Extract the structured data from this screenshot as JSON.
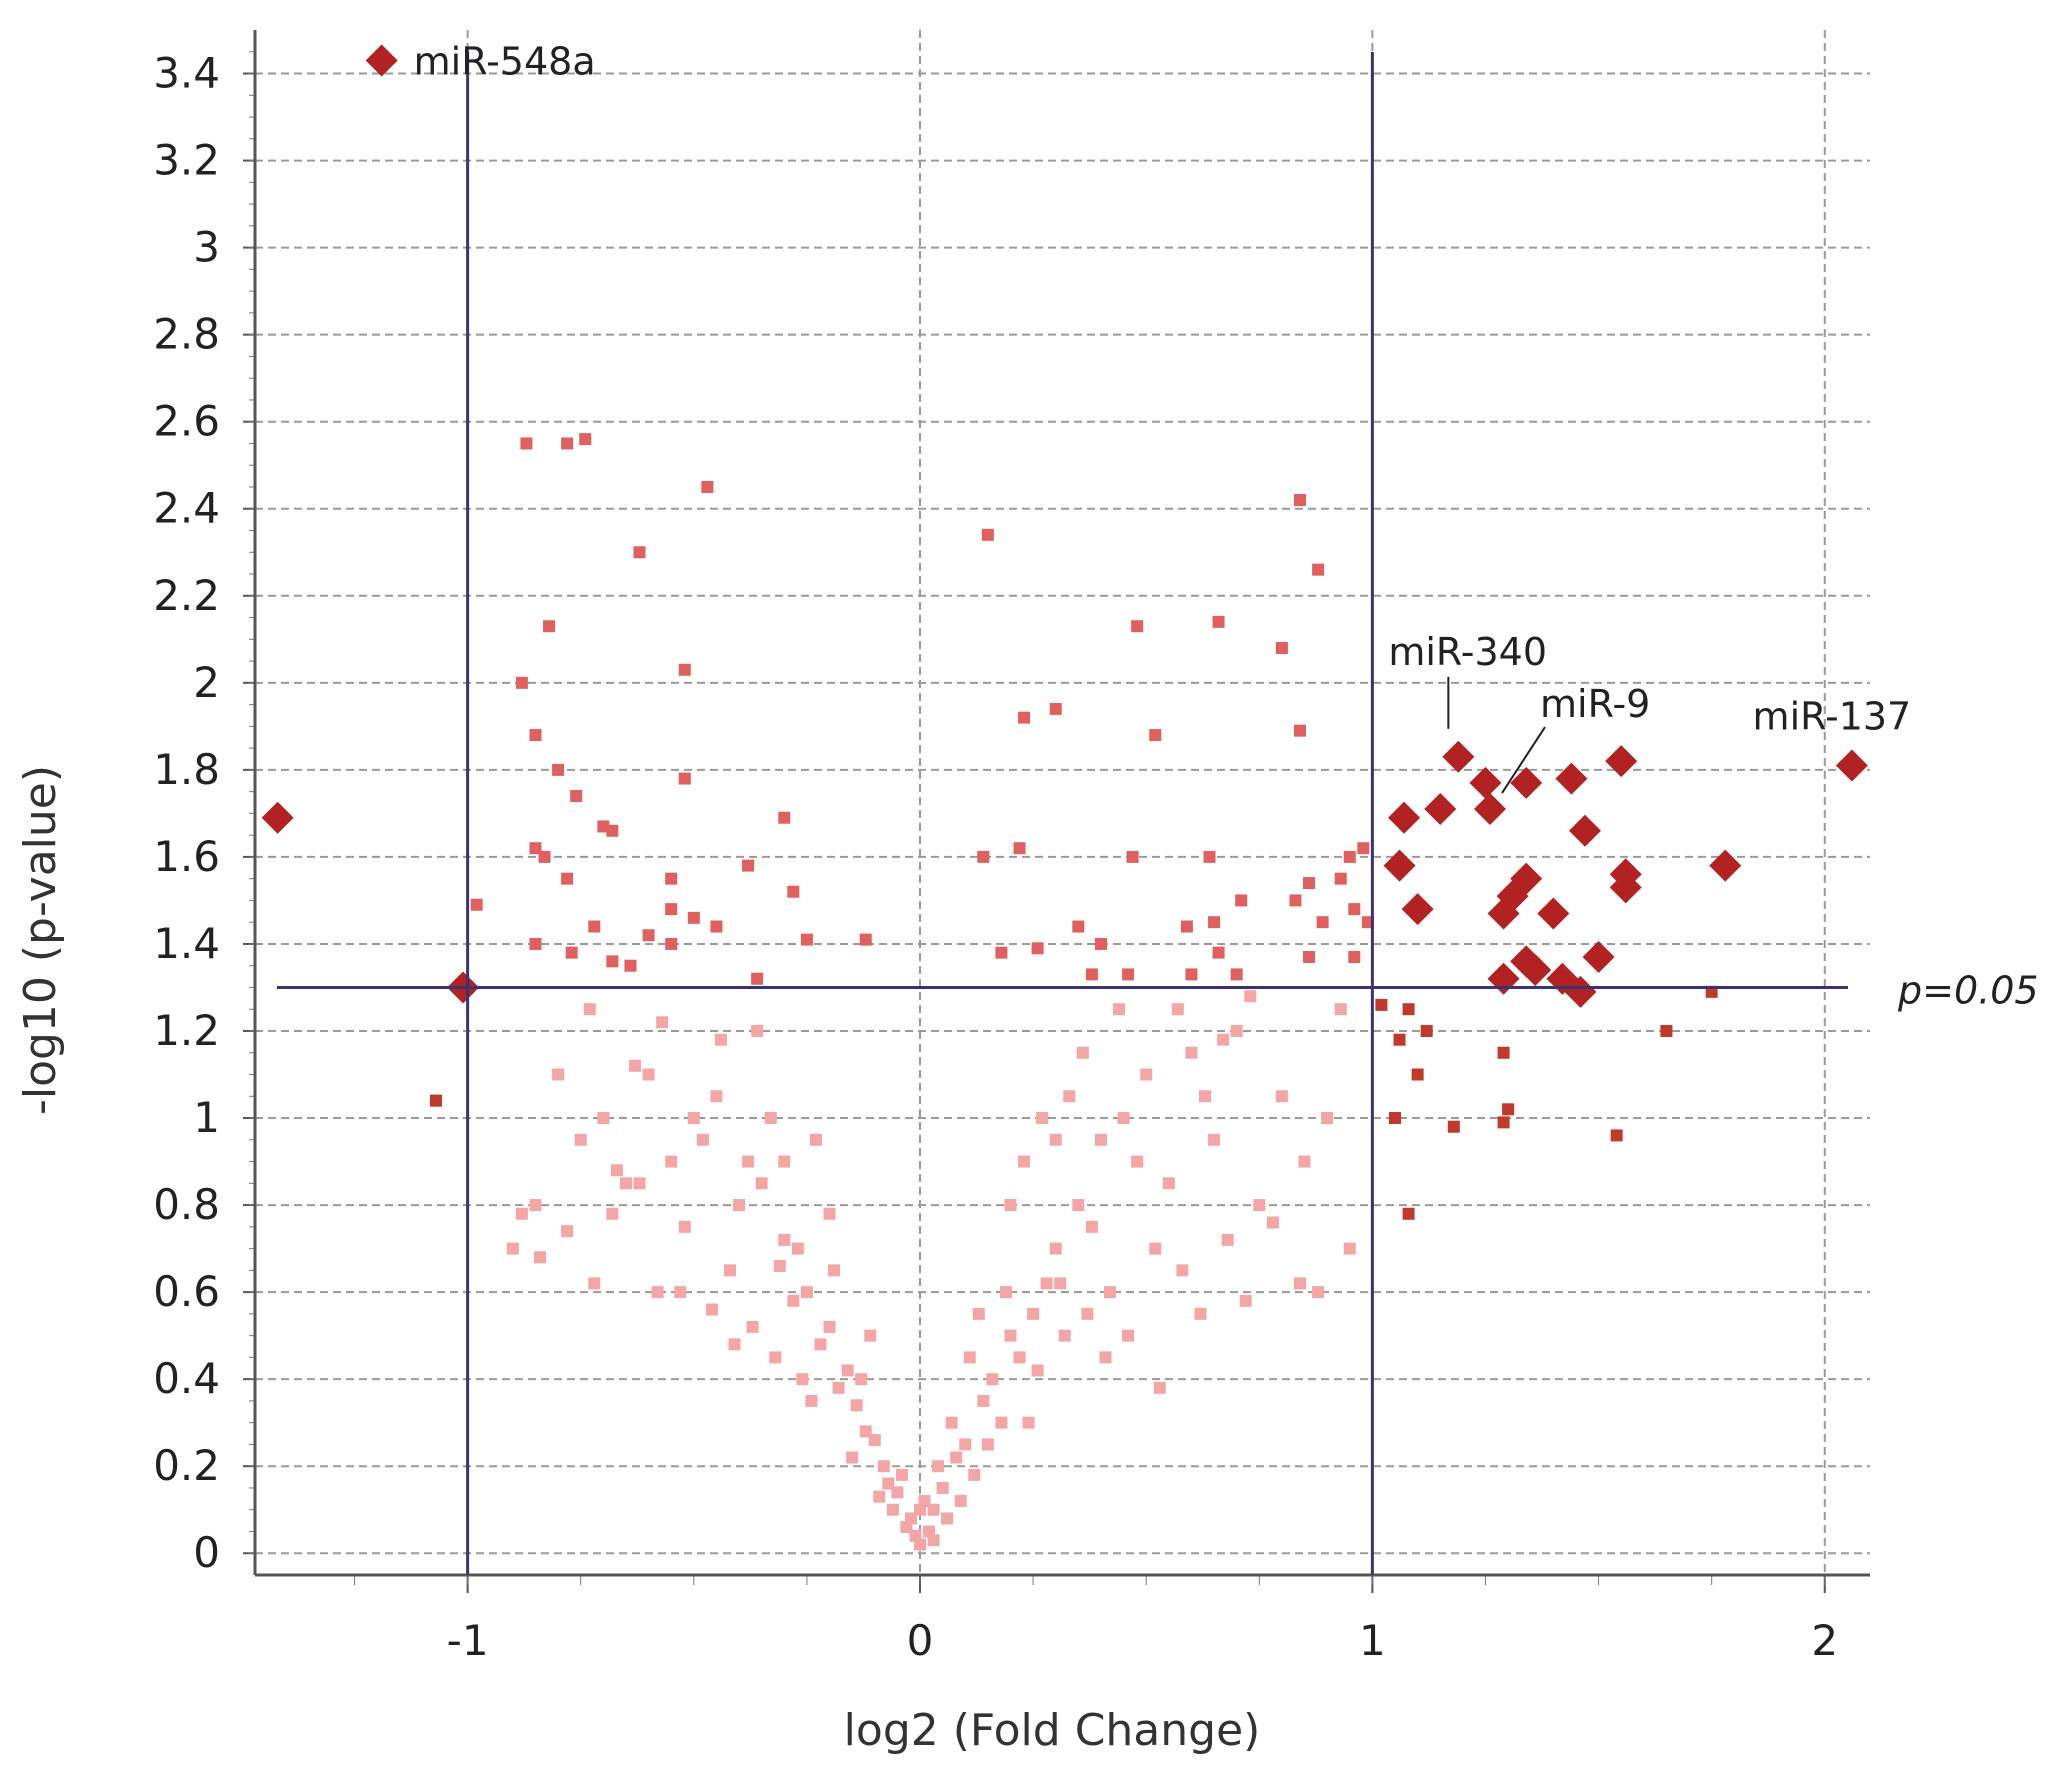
{
  "chart_data": {
    "type": "scatter",
    "title": "",
    "xlabel": "log2 (Fold Change)",
    "ylabel": "-log10 (p-value)",
    "xlim": [
      -1.47,
      2.1
    ],
    "ylim": [
      -0.05,
      3.5
    ],
    "xticks": [
      -1,
      0,
      1,
      2
    ],
    "xtick_labels": [
      "-1",
      "0",
      "1",
      "2"
    ],
    "yticks": [
      0,
      0.2,
      0.4,
      0.6,
      0.8,
      1,
      1.2,
      1.4,
      1.6,
      1.8,
      2,
      2.2,
      2.4,
      2.6,
      2.8,
      3,
      3.2,
      3.4
    ],
    "ytick_labels": [
      "0",
      "0.2",
      "0.4",
      "0.6",
      "0.8",
      "1",
      "1.2",
      "1.4",
      "1.6",
      "1.8",
      "2",
      "2.2",
      "2.4",
      "2.6",
      "2.8",
      "3",
      "3.2",
      "3.4"
    ],
    "grid": true,
    "colors": {
      "not_significant": "#f4a6a6",
      "p_significant": "#e06060",
      "fc_significant": "#c0392b",
      "highlighted": "#b22222",
      "threshold_line": "#3b3273"
    },
    "thresholds": {
      "fold_change_lines": [
        -1,
        1
      ],
      "p_value_line": 1.3,
      "p_value_label": "p=0.05"
    },
    "series": [
      {
        "group": "not_significant",
        "marker": "square",
        "points": [
          [
            0.0,
            0.02
          ],
          [
            0.02,
            0.05
          ],
          [
            -0.02,
            0.08
          ],
          [
            0.03,
            0.1
          ],
          [
            -0.03,
            0.06
          ],
          [
            0.01,
            0.12
          ],
          [
            0.05,
            0.15
          ],
          [
            -0.05,
            0.14
          ],
          [
            0.06,
            0.08
          ],
          [
            -0.06,
            0.1
          ],
          [
            0.04,
            0.2
          ],
          [
            -0.04,
            0.18
          ],
          [
            0.08,
            0.22
          ],
          [
            -0.08,
            0.2
          ],
          [
            0.1,
            0.25
          ],
          [
            -0.1,
            0.26
          ],
          [
            0.07,
            0.3
          ],
          [
            -0.12,
            0.28
          ],
          [
            0.12,
            0.18
          ],
          [
            -0.07,
            0.16
          ],
          [
            0.0,
            0.1
          ],
          [
            0.09,
            0.12
          ],
          [
            -0.09,
            0.13
          ],
          [
            0.03,
            0.03
          ],
          [
            -0.01,
            0.04
          ],
          [
            0.14,
            0.35
          ],
          [
            -0.14,
            0.34
          ],
          [
            0.16,
            0.4
          ],
          [
            -0.16,
            0.42
          ],
          [
            0.18,
            0.3
          ],
          [
            -0.18,
            0.38
          ],
          [
            0.2,
            0.5
          ],
          [
            -0.2,
            0.52
          ],
          [
            0.22,
            0.45
          ],
          [
            -0.22,
            0.48
          ],
          [
            0.25,
            0.55
          ],
          [
            -0.25,
            0.6
          ],
          [
            0.28,
            0.62
          ],
          [
            -0.28,
            0.58
          ],
          [
            0.3,
            0.7
          ],
          [
            -0.3,
            0.72
          ],
          [
            0.32,
            0.5
          ],
          [
            -0.32,
            0.45
          ],
          [
            0.15,
            0.25
          ],
          [
            -0.15,
            0.22
          ],
          [
            0.24,
            0.3
          ],
          [
            -0.24,
            0.35
          ],
          [
            0.26,
            0.42
          ],
          [
            -0.26,
            0.4
          ],
          [
            0.11,
            0.45
          ],
          [
            -0.11,
            0.5
          ],
          [
            0.13,
            0.55
          ],
          [
            -0.13,
            0.4
          ],
          [
            0.19,
            0.6
          ],
          [
            -0.19,
            0.65
          ],
          [
            0.35,
            0.8
          ],
          [
            -0.35,
            0.85
          ],
          [
            0.38,
            0.75
          ],
          [
            -0.38,
            0.9
          ],
          [
            0.4,
            0.95
          ],
          [
            -0.4,
            0.8
          ],
          [
            0.42,
            0.6
          ],
          [
            -0.42,
            0.65
          ],
          [
            0.45,
            1.0
          ],
          [
            -0.45,
            1.05
          ],
          [
            0.48,
            0.9
          ],
          [
            -0.48,
            0.95
          ],
          [
            0.5,
            1.1
          ],
          [
            -0.5,
            1.0
          ],
          [
            0.55,
            0.85
          ],
          [
            -0.55,
            0.9
          ],
          [
            0.6,
            1.15
          ],
          [
            -0.6,
            1.1
          ],
          [
            0.65,
            0.95
          ],
          [
            -0.65,
            0.85
          ],
          [
            0.7,
            1.2
          ],
          [
            -0.7,
            1.0
          ],
          [
            0.75,
            0.8
          ],
          [
            -0.75,
            0.95
          ],
          [
            0.8,
            1.05
          ],
          [
            -0.8,
            1.1
          ],
          [
            0.85,
            0.9
          ],
          [
            -0.85,
            0.8
          ],
          [
            0.9,
            1.0
          ],
          [
            -0.9,
            0.7
          ],
          [
            0.3,
            0.95
          ],
          [
            -0.3,
            0.9
          ],
          [
            0.33,
            1.05
          ],
          [
            -0.33,
            1.0
          ],
          [
            0.36,
            1.15
          ],
          [
            -0.36,
            1.2
          ],
          [
            0.44,
            1.25
          ],
          [
            -0.44,
            1.18
          ],
          [
            0.52,
            0.7
          ],
          [
            -0.52,
            0.75
          ],
          [
            0.58,
            0.65
          ],
          [
            -0.58,
            0.6
          ],
          [
            0.62,
            0.55
          ],
          [
            -0.62,
            0.85
          ],
          [
            0.68,
            0.72
          ],
          [
            -0.68,
            0.78
          ],
          [
            0.72,
            0.58
          ],
          [
            -0.72,
            0.62
          ],
          [
            0.78,
            0.76
          ],
          [
            -0.78,
            0.74
          ],
          [
            0.84,
            0.62
          ],
          [
            -0.84,
            0.68
          ],
          [
            0.88,
            0.6
          ],
          [
            -0.88,
            0.78
          ],
          [
            0.95,
            0.7
          ],
          [
            0.2,
            0.8
          ],
          [
            -0.2,
            0.78
          ],
          [
            0.23,
            0.9
          ],
          [
            -0.23,
            0.95
          ],
          [
            0.27,
            1.0
          ],
          [
            -0.27,
            0.7
          ],
          [
            0.31,
            0.62
          ],
          [
            -0.31,
            0.66
          ],
          [
            0.37,
            0.55
          ],
          [
            -0.37,
            0.52
          ],
          [
            0.41,
            0.45
          ],
          [
            -0.41,
            0.48
          ],
          [
            0.46,
            0.5
          ],
          [
            -0.46,
            0.56
          ],
          [
            0.53,
            0.38
          ],
          [
            -0.53,
            0.6
          ],
          [
            0.57,
            1.25
          ],
          [
            -0.57,
            1.22
          ],
          [
            0.63,
            1.05
          ],
          [
            -0.63,
            1.12
          ],
          [
            0.67,
            1.18
          ],
          [
            -0.67,
            0.88
          ],
          [
            0.73,
            1.28
          ],
          [
            -0.73,
            1.25
          ],
          [
            0.93,
            1.25
          ]
        ]
      },
      {
        "group": "p_significant",
        "marker": "square",
        "points": [
          [
            -0.87,
            2.55
          ],
          [
            -0.78,
            2.55
          ],
          [
            -0.74,
            2.56
          ],
          [
            -0.47,
            2.45
          ],
          [
            -0.62,
            2.3
          ],
          [
            -0.82,
            2.13
          ],
          [
            -0.52,
            2.03
          ],
          [
            -0.88,
            2.0
          ],
          [
            -0.85,
            1.88
          ],
          [
            -0.8,
            1.8
          ],
          [
            -0.76,
            1.74
          ],
          [
            -0.52,
            1.78
          ],
          [
            -0.7,
            1.67
          ],
          [
            -0.68,
            1.66
          ],
          [
            -0.3,
            1.69
          ],
          [
            -0.85,
            1.62
          ],
          [
            -0.83,
            1.6
          ],
          [
            -0.78,
            1.55
          ],
          [
            -0.55,
            1.55
          ],
          [
            -0.38,
            1.58
          ],
          [
            -0.28,
            1.52
          ],
          [
            -0.55,
            1.48
          ],
          [
            -0.5,
            1.46
          ],
          [
            -0.45,
            1.44
          ],
          [
            -0.72,
            1.44
          ],
          [
            -0.6,
            1.42
          ],
          [
            -0.55,
            1.4
          ],
          [
            -0.85,
            1.4
          ],
          [
            -0.77,
            1.38
          ],
          [
            -0.68,
            1.36
          ],
          [
            -0.64,
            1.35
          ],
          [
            -0.25,
            1.41
          ],
          [
            -0.12,
            1.41
          ],
          [
            -0.98,
            1.49
          ],
          [
            -0.36,
            1.32
          ],
          [
            0.15,
            2.34
          ],
          [
            0.84,
            2.42
          ],
          [
            0.88,
            2.26
          ],
          [
            0.48,
            2.13
          ],
          [
            0.66,
            2.14
          ],
          [
            0.8,
            2.08
          ],
          [
            0.3,
            1.94
          ],
          [
            0.23,
            1.92
          ],
          [
            0.52,
            1.88
          ],
          [
            0.84,
            1.89
          ],
          [
            0.14,
            1.6
          ],
          [
            0.22,
            1.62
          ],
          [
            0.47,
            1.6
          ],
          [
            0.64,
            1.6
          ],
          [
            0.71,
            1.5
          ],
          [
            0.65,
            1.45
          ],
          [
            0.59,
            1.44
          ],
          [
            0.83,
            1.5
          ],
          [
            0.86,
            1.54
          ],
          [
            0.95,
            1.6
          ],
          [
            0.98,
            1.62
          ],
          [
            0.93,
            1.55
          ],
          [
            0.89,
            1.45
          ],
          [
            0.96,
            1.48
          ],
          [
            0.99,
            1.45
          ],
          [
            0.35,
            1.44
          ],
          [
            0.4,
            1.4
          ],
          [
            0.18,
            1.38
          ],
          [
            0.26,
            1.39
          ],
          [
            0.66,
            1.38
          ],
          [
            0.38,
            1.33
          ],
          [
            0.46,
            1.33
          ],
          [
            0.6,
            1.33
          ],
          [
            0.7,
            1.33
          ],
          [
            0.86,
            1.37
          ],
          [
            0.96,
            1.37
          ]
        ]
      },
      {
        "group": "fc_significant",
        "marker": "square",
        "points": [
          [
            -1.07,
            1.04
          ],
          [
            1.02,
            1.26
          ],
          [
            1.06,
            1.18
          ],
          [
            1.08,
            1.25
          ],
          [
            1.1,
            1.1
          ],
          [
            1.12,
            1.2
          ],
          [
            1.18,
            0.98
          ],
          [
            1.05,
            1.0
          ],
          [
            1.29,
            0.99
          ],
          [
            1.3,
            1.02
          ],
          [
            1.08,
            0.78
          ],
          [
            1.29,
            1.15
          ],
          [
            1.54,
            0.96
          ],
          [
            1.75,
            1.29
          ],
          [
            1.65,
            1.2
          ]
        ]
      },
      {
        "group": "highlighted",
        "marker": "diamond",
        "points": [
          [
            -1.19,
            3.43
          ],
          [
            -1.42,
            1.69
          ],
          [
            -1.01,
            1.3
          ],
          [
            1.07,
            1.69
          ],
          [
            1.15,
            1.71
          ],
          [
            1.19,
            1.83
          ],
          [
            1.25,
            1.77
          ],
          [
            1.26,
            1.71
          ],
          [
            1.34,
            1.77
          ],
          [
            1.44,
            1.78
          ],
          [
            1.55,
            1.82
          ],
          [
            1.47,
            1.66
          ],
          [
            1.06,
            1.58
          ],
          [
            1.1,
            1.48
          ],
          [
            1.29,
            1.47
          ],
          [
            1.31,
            1.51
          ],
          [
            1.34,
            1.55
          ],
          [
            1.4,
            1.47
          ],
          [
            1.56,
            1.56
          ],
          [
            1.56,
            1.53
          ],
          [
            1.78,
            1.58
          ],
          [
            2.06,
            1.81
          ],
          [
            1.5,
            1.37
          ],
          [
            1.34,
            1.36
          ],
          [
            1.36,
            1.34
          ],
          [
            1.29,
            1.32
          ],
          [
            1.42,
            1.32
          ],
          [
            1.46,
            1.29
          ]
        ]
      }
    ],
    "annotations": [
      {
        "text": "miR-548a",
        "x": -1.19,
        "y": 3.43
      },
      {
        "text": "miR-340",
        "x": 1.19,
        "y": 1.83
      },
      {
        "text": "miR-9",
        "x": 1.26,
        "y": 1.71
      },
      {
        "text": "miR-137",
        "x": 2.06,
        "y": 1.81
      }
    ]
  }
}
